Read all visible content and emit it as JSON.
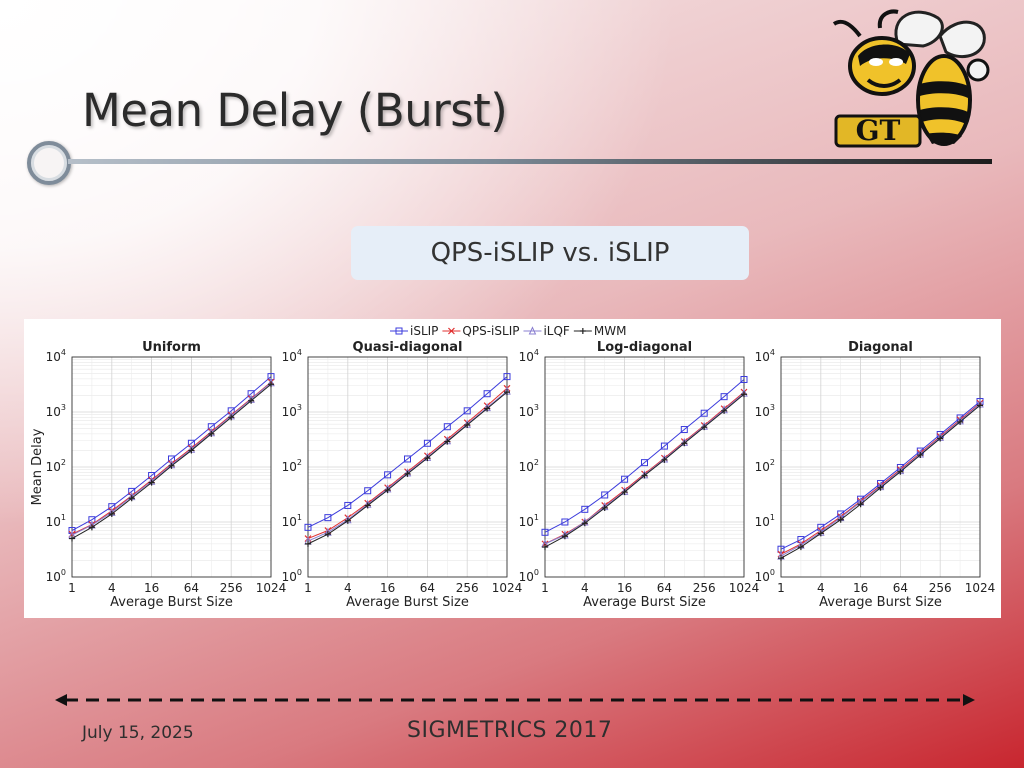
{
  "slide": {
    "title": "Mean Delay (Burst)",
    "subtitle": "QPS-iSLIP vs. iSLIP",
    "footer_date": "July 15, 2025",
    "footer_conference": "SIGMETRICS 2017",
    "logo_text": "GT",
    "accent_color": "#c8262f"
  },
  "chart_data": {
    "type": "line",
    "log_scale": {
      "x": "log2",
      "y": "log10"
    },
    "xlabel": "Average Burst Size",
    "ylabel": "Mean Delay",
    "x": [
      1,
      2,
      4,
      8,
      16,
      32,
      64,
      128,
      256,
      512,
      1024
    ],
    "x_ticks": [
      "1",
      "4",
      "16",
      "64",
      "256",
      "1024"
    ],
    "y_ticks": [
      "10^0",
      "10^1",
      "10^2",
      "10^3",
      "10^4"
    ],
    "ylim": [
      1,
      10000
    ],
    "grid": true,
    "legend_position": "top-center",
    "legend": [
      {
        "name": "iSLIP",
        "color": "#3b3bdc",
        "marker": "square"
      },
      {
        "name": "QPS-iSLIP",
        "color": "#e03030",
        "marker": "x"
      },
      {
        "name": "iLQF",
        "color": "#8a7fd0",
        "marker": "triangle"
      },
      {
        "name": "MWM",
        "color": "#222222",
        "marker": "plus"
      }
    ],
    "panels": [
      {
        "title": "Uniform",
        "series": [
          {
            "name": "iSLIP",
            "values": [
              7,
              11,
              19,
              36,
              70,
              140,
              270,
              540,
              1050,
              2150,
              4400
            ]
          },
          {
            "name": "QPS-iSLIP",
            "values": [
              6,
              9,
              16,
              30,
              58,
              115,
              220,
              440,
              880,
              1750,
              3500
            ]
          },
          {
            "name": "iLQF",
            "values": [
              5.8,
              8.8,
              15,
              29,
              55,
              110,
              210,
              420,
              850,
              1700,
              3400
            ]
          },
          {
            "name": "MWM",
            "values": [
              5,
              8,
              14,
              27,
              52,
              105,
              200,
              400,
              800,
              1600,
              3200
            ]
          }
        ]
      },
      {
        "title": "Quasi-diagonal",
        "series": [
          {
            "name": "iSLIP",
            "values": [
              8,
              12,
              20,
              37,
              72,
              140,
              270,
              540,
              1050,
              2150,
              4400
            ]
          },
          {
            "name": "QPS-iSLIP",
            "values": [
              5,
              7,
              12,
              22,
              42,
              82,
              160,
              320,
              640,
              1300,
              2700
            ]
          },
          {
            "name": "iLQF",
            "values": [
              4.5,
              6.5,
              11,
              21,
              40,
              78,
              150,
              300,
              600,
              1200,
              2400
            ]
          },
          {
            "name": "MWM",
            "values": [
              4,
              6,
              10.5,
              20,
              38,
              75,
              145,
              290,
              580,
              1150,
              2300
            ]
          }
        ]
      },
      {
        "title": "Log-diagonal",
        "series": [
          {
            "name": "iSLIP",
            "values": [
              6.5,
              10,
              17,
              31,
              60,
              120,
              240,
              480,
              950,
              1900,
              3900
            ]
          },
          {
            "name": "QPS-iSLIP",
            "values": [
              4,
              6,
              10,
              20,
              38,
              75,
              145,
              290,
              570,
              1150,
              2300
            ]
          },
          {
            "name": "iLQF",
            "values": [
              4,
              5.8,
              10,
              19,
              36,
              72,
              140,
              280,
              550,
              1100,
              2200
            ]
          },
          {
            "name": "MWM",
            "values": [
              3.5,
              5.5,
              9.5,
              18,
              35,
              70,
              135,
              270,
              530,
              1050,
              2100
            ]
          }
        ]
      },
      {
        "title": "Diagonal",
        "series": [
          {
            "name": "iSLIP",
            "values": [
              3.2,
              4.8,
              8,
              14,
              26,
              50,
              98,
              195,
              390,
              780,
              1550
            ]
          },
          {
            "name": "QPS-iSLIP",
            "values": [
              2.6,
              4,
              7,
              12.5,
              24,
              46,
              90,
              180,
              360,
              720,
              1450
            ]
          },
          {
            "name": "iLQF",
            "values": [
              2.4,
              3.8,
              6.5,
              12,
              23,
              44,
              86,
              172,
              345,
              690,
              1400
            ]
          },
          {
            "name": "MWM",
            "values": [
              2.2,
              3.5,
              6.2,
              11,
              21,
              42,
              82,
              165,
              330,
              660,
              1320
            ]
          }
        ]
      }
    ]
  }
}
